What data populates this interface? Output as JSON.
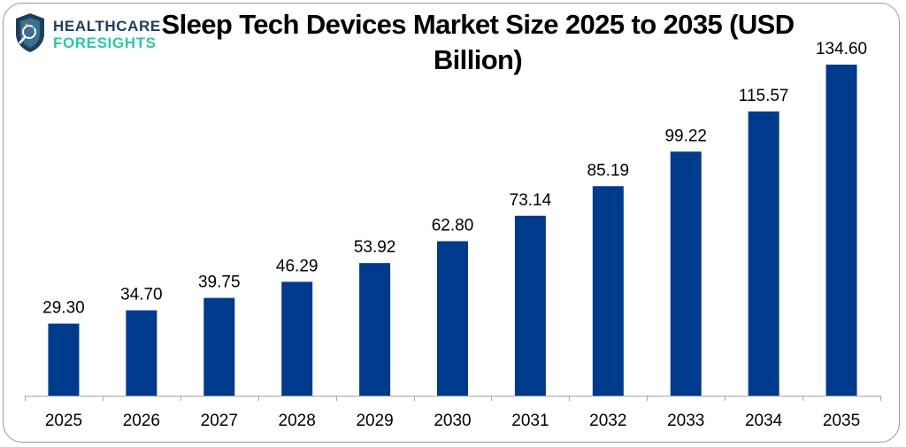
{
  "logo": {
    "line1": "HEALTHCARE",
    "line2": "FORESIGHTS",
    "colors": {
      "dark": "#1d3e5c",
      "accent": "#2ec4a6"
    }
  },
  "chart_data": {
    "type": "bar",
    "title": "Sleep Tech Devices Market Size 2025 to 2035 (USD Billion)",
    "title_lines": [
      "Sleep Tech Devices Market Size 2025 to 2035 (USD",
      "Billion)"
    ],
    "xlabel": "",
    "ylabel": "",
    "categories": [
      "2025",
      "2026",
      "2027",
      "2028",
      "2029",
      "2030",
      "2031",
      "2032",
      "2033",
      "2034",
      "2035"
    ],
    "values": [
      29.3,
      34.7,
      39.75,
      46.29,
      53.92,
      62.8,
      73.14,
      85.19,
      99.22,
      115.57,
      134.6
    ],
    "data_labels": [
      "29.30",
      "34.70",
      "39.75",
      "46.29",
      "53.92",
      "62.80",
      "73.14",
      "85.19",
      "99.22",
      "115.57",
      "134.60"
    ],
    "ylim": [
      0,
      134.6
    ],
    "grid": false,
    "legend": "none",
    "bar_color": "#003A8C"
  }
}
